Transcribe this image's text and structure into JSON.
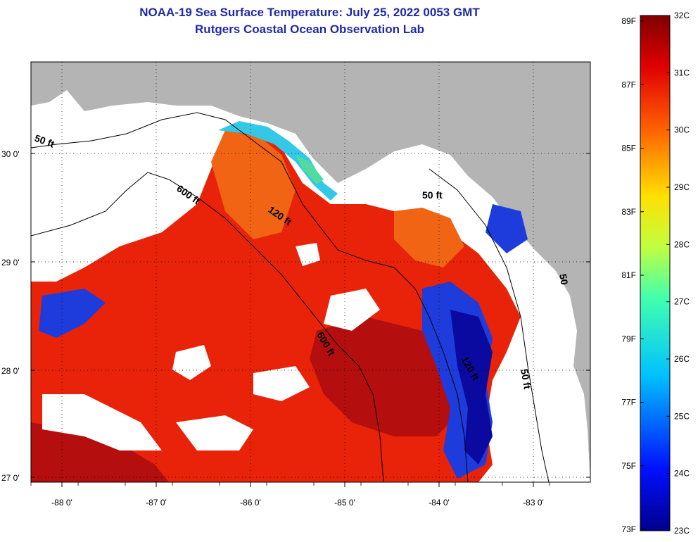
{
  "header": {
    "title_line1": "NOAA-19 Sea Surface Temperature:  July 25, 2022 0053 GMT",
    "title_line2": "Rutgers Coastal Ocean Observation Lab"
  },
  "map": {
    "lat_labels": [
      "30 0'",
      "29 0'",
      "28 0'",
      "27 0'"
    ],
    "lon_labels": [
      "-88 0'",
      "-87 0'",
      "-86 0'",
      "-85 0'",
      "-84 0'",
      "-83 0'"
    ],
    "contour_labels": [
      "50 ft",
      "600 ft",
      "120 ft",
      "50 ft",
      "600 ft",
      "120 ft",
      "50 ft",
      "50"
    ],
    "colors": {
      "land": "#b4b4b4",
      "cloud": "#ffffff",
      "warm": "#e8230a",
      "hot": "#b40e0e",
      "orange": "#f06414",
      "cool": "#1e3cdc",
      "cold": "#0a0aa0",
      "cyan": "#32c8e6",
      "green": "#50dca0"
    }
  },
  "colorbar": {
    "f_labels": [
      "89F",
      "87F",
      "85F",
      "83F",
      "81F",
      "79F",
      "77F",
      "75F",
      "73F"
    ],
    "c_labels": [
      "32C",
      "31C",
      "30C",
      "29C",
      "28C",
      "27C",
      "26C",
      "25C",
      "24C",
      "23C"
    ]
  }
}
